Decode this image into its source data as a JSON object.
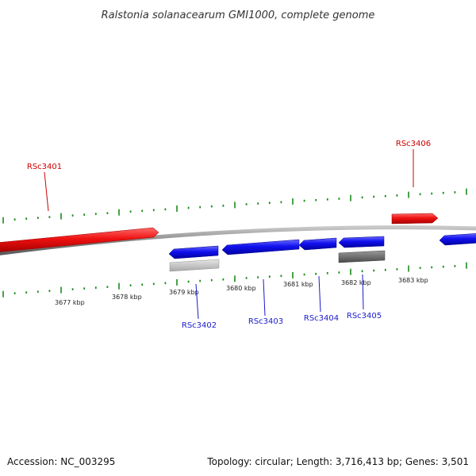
{
  "title": "Ralstonia solanacearum GMI1000, complete genome",
  "footer": {
    "accession": "Accession: NC_003295",
    "summary": "Topology: circular; Length: 3,716,413 bp; Genes: 3,501"
  },
  "colors": {
    "forward_gene": "#e81010",
    "reverse_gene": "#1010e8",
    "backbone": "#888888",
    "tick": "#1a8a1a",
    "forward_label": "#cc0000",
    "reverse_label": "#1a1acc",
    "pseudo_light": "#c4c4c4",
    "pseudo_dark": "#6e6e6e"
  },
  "kbp_labels": [
    "3677 kbp",
    "3678 kbp",
    "3679 kbp",
    "3680 kbp",
    "3681 kbp",
    "3682 kbp",
    "3683 kbp"
  ],
  "genes": {
    "forward": [
      "RSc3401",
      "RSc3406"
    ],
    "reverse": [
      "RSc3402",
      "RSc3403",
      "RSc3404",
      "RSc3405"
    ]
  }
}
